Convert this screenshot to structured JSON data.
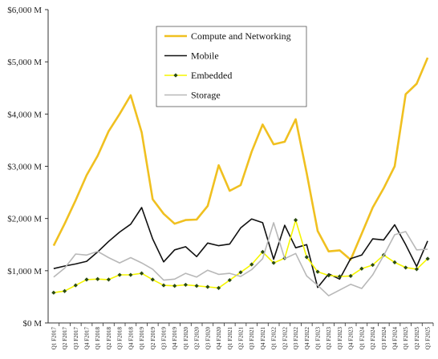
{
  "chart_data": {
    "type": "line",
    "title": "",
    "xlabel": "",
    "ylabel": "",
    "ylim": [
      0,
      6000
    ],
    "yticks": [
      "$0 M",
      "$1,000 M",
      "$2,000 M",
      "$3,000 M",
      "$4,000 M",
      "$5,000 M",
      "$6,000 M"
    ],
    "ytick_values": [
      0,
      1000,
      2000,
      3000,
      4000,
      5000,
      6000
    ],
    "grid": "off",
    "legend_position": "top-center",
    "categories": [
      "Q1 F2017",
      "Q2 F2017",
      "Q3 F2017",
      "Q4 F2017",
      "Q1 F2018",
      "Q2 F2018",
      "Q3 F2018",
      "Q4 F2018",
      "Q1 F2019",
      "Q2 F2019",
      "Q3 F2019",
      "Q4 F2019",
      "Q1 F2020",
      "Q2 F2020",
      "Q3 F2020",
      "Q4 F2020",
      "Q1 F2021",
      "Q2 F2021",
      "Q3 F2021",
      "Q4 F2021",
      "Q1 F2022",
      "Q2 F2022",
      "Q3 F2022",
      "Q4 F2022",
      "Q1 F2023",
      "Q2 F2023",
      "Q3 F2023",
      "Q4 F2023",
      "Q1 F2024",
      "Q2 F2024",
      "Q3 F2024",
      "Q4 F2024",
      "Q1 F2025",
      "Q2 F2025",
      "Q3 F2025"
    ],
    "series": [
      {
        "name": "Compute and Networking",
        "color": "#f0c020",
        "width": 2.6,
        "marker": "none",
        "values": [
          1480,
          1900,
          2350,
          2830,
          3200,
          3670,
          4000,
          4360,
          3650,
          2370,
          2090,
          1900,
          1970,
          1980,
          2240,
          3020,
          2530,
          2640,
          3280,
          3800,
          3420,
          3470,
          3900,
          2870,
          1760,
          1370,
          1390,
          1210,
          1710,
          2210,
          2580,
          3000,
          4380,
          4580,
          5080
        ]
      },
      {
        "name": "Mobile",
        "color": "#111111",
        "width": 1.6,
        "marker": "none",
        "values": [
          1040,
          1090,
          1130,
          1180,
          1360,
          1560,
          1740,
          1890,
          2210,
          1610,
          1170,
          1400,
          1460,
          1270,
          1530,
          1480,
          1510,
          1820,
          1990,
          1920,
          1220,
          1870,
          1440,
          1500,
          680,
          940,
          840,
          1230,
          1300,
          1610,
          1590,
          1880,
          1500,
          1080,
          1570
        ]
      },
      {
        "name": "Embedded",
        "color": "#f5f500",
        "width": 1.6,
        "marker": "diamond",
        "marker_color": "#2a4a10",
        "values": [
          580,
          610,
          720,
          830,
          840,
          830,
          920,
          920,
          950,
          830,
          720,
          710,
          730,
          710,
          690,
          670,
          820,
          970,
          1120,
          1360,
          1150,
          1240,
          1970,
          1260,
          980,
          910,
          890,
          900,
          1040,
          1110,
          1300,
          1160,
          1060,
          1030,
          1230
        ]
      },
      {
        "name": "Storage",
        "color": "#b8b8b8",
        "width": 1.6,
        "marker": "none",
        "values": [
          880,
          1050,
          1320,
          1300,
          1370,
          1250,
          1150,
          1250,
          1150,
          1030,
          820,
          840,
          950,
          880,
          1010,
          930,
          950,
          890,
          1020,
          1230,
          1920,
          1230,
          1330,
          900,
          720,
          520,
          630,
          740,
          660,
          920,
          1290,
          1690,
          1750,
          1400,
          1410
        ]
      }
    ]
  }
}
